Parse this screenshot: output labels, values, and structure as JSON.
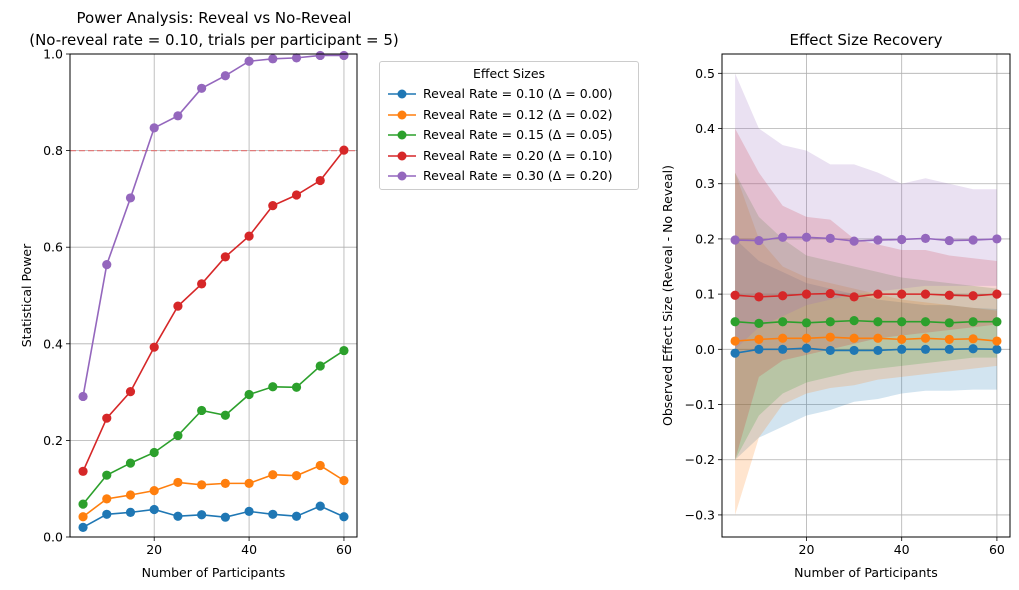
{
  "chart_data": [
    {
      "type": "line",
      "title_line1": "Power Analysis: Reveal vs No-Reveal",
      "title_line2": "(No-reveal rate = 0.10, trials per participant = 5)",
      "xlabel": "Number of Participants",
      "ylabel": "Statistical Power",
      "xlim": [
        2.25,
        62.75
      ],
      "ylim": [
        0,
        1
      ],
      "xticks": [
        20,
        40,
        60
      ],
      "yticks": [
        0.0,
        0.2,
        0.4,
        0.6,
        0.8,
        1.0
      ],
      "ytick_labels": [
        "0.0",
        "0.2",
        "0.4",
        "0.6",
        "0.8",
        "1.0"
      ],
      "grid": true,
      "reference_line": {
        "y": 0.8,
        "color": "#e07b7b",
        "style": "dashed"
      },
      "x": [
        5,
        10,
        15,
        20,
        25,
        30,
        35,
        40,
        45,
        50,
        55,
        60
      ],
      "series": [
        {
          "color": "#1f77b4",
          "values": [
            0.02,
            0.047,
            0.051,
            0.057,
            0.043,
            0.046,
            0.041,
            0.053,
            0.047,
            0.043,
            0.064,
            0.042
          ]
        },
        {
          "color": "#ff7f0e",
          "values": [
            0.042,
            0.079,
            0.087,
            0.096,
            0.113,
            0.108,
            0.111,
            0.111,
            0.129,
            0.127,
            0.148,
            0.117
          ]
        },
        {
          "color": "#2ca02c",
          "values": [
            0.068,
            0.128,
            0.153,
            0.175,
            0.21,
            0.262,
            0.252,
            0.295,
            0.311,
            0.31,
            0.354,
            0.386
          ]
        },
        {
          "color": "#d62728",
          "values": [
            0.136,
            0.246,
            0.301,
            0.393,
            0.478,
            0.524,
            0.58,
            0.623,
            0.686,
            0.708,
            0.738,
            0.801
          ]
        },
        {
          "color": "#9467bd",
          "values": [
            0.291,
            0.564,
            0.702,
            0.847,
            0.872,
            0.929,
            0.955,
            0.985,
            0.99,
            0.992,
            0.997,
            0.997
          ]
        }
      ]
    },
    {
      "type": "line",
      "title": "Effect Size Recovery",
      "xlabel": "Number of Participants",
      "ylabel": "Observed Effect Size (Reveal - No Reveal)",
      "xlim": [
        2.25,
        62.75
      ],
      "ylim": [
        -0.34,
        0.535
      ],
      "xticks": [
        20,
        40,
        60
      ],
      "yticks": [
        -0.3,
        -0.2,
        -0.1,
        0.0,
        0.1,
        0.2,
        0.3,
        0.4,
        0.5
      ],
      "ytick_labels": [
        "−0.3",
        "−0.2",
        "−0.1",
        "0.0",
        "0.1",
        "0.2",
        "0.3",
        "0.4",
        "0.5"
      ],
      "grid": true,
      "x": [
        5,
        10,
        15,
        20,
        25,
        30,
        35,
        40,
        45,
        50,
        55,
        60
      ],
      "series": [
        {
          "color": "#1f77b4",
          "values": [
            -0.007,
            0.0,
            0.0,
            0.002,
            -0.002,
            -0.002,
            -0.002,
            0.0,
            0.0,
            0.0,
            0.001,
            0.0
          ],
          "lower": [
            -0.2,
            -0.16,
            -0.14,
            -0.12,
            -0.11,
            -0.095,
            -0.09,
            -0.08,
            -0.075,
            -0.075,
            -0.073,
            -0.073
          ],
          "upper": [
            0.2,
            0.16,
            0.14,
            0.12,
            0.11,
            0.1,
            0.09,
            0.085,
            0.08,
            0.08,
            0.075,
            0.073
          ]
        },
        {
          "color": "#ff7f0e",
          "values": [
            0.015,
            0.018,
            0.02,
            0.02,
            0.022,
            0.02,
            0.02,
            0.018,
            0.02,
            0.018,
            0.019,
            0.015
          ],
          "lower": [
            -0.3,
            -0.16,
            -0.1,
            -0.08,
            -0.07,
            -0.065,
            -0.055,
            -0.05,
            -0.045,
            -0.04,
            -0.035,
            -0.03
          ],
          "upper": [
            0.32,
            0.2,
            0.15,
            0.13,
            0.12,
            0.11,
            0.1,
            0.09,
            0.085,
            0.08,
            0.075,
            0.07
          ]
        },
        {
          "color": "#2ca02c",
          "values": [
            0.05,
            0.047,
            0.05,
            0.048,
            0.05,
            0.052,
            0.05,
            0.05,
            0.05,
            0.048,
            0.05,
            0.05
          ],
          "lower": [
            -0.2,
            -0.12,
            -0.08,
            -0.06,
            -0.05,
            -0.04,
            -0.035,
            -0.03,
            -0.025,
            -0.02,
            -0.015,
            -0.015
          ],
          "upper": [
            0.32,
            0.24,
            0.2,
            0.17,
            0.16,
            0.15,
            0.14,
            0.13,
            0.125,
            0.12,
            0.115,
            0.11
          ]
        },
        {
          "color": "#d62728",
          "values": [
            0.098,
            0.095,
            0.097,
            0.1,
            0.101,
            0.095,
            0.1,
            0.1,
            0.1,
            0.098,
            0.097,
            0.1
          ],
          "lower": [
            -0.2,
            -0.05,
            -0.02,
            -0.01,
            0.0,
            0.01,
            0.02,
            0.025,
            0.03,
            0.035,
            0.04,
            0.045
          ],
          "upper": [
            0.4,
            0.32,
            0.26,
            0.24,
            0.235,
            0.2,
            0.19,
            0.18,
            0.18,
            0.17,
            0.165,
            0.16
          ]
        },
        {
          "color": "#9467bd",
          "values": [
            0.198,
            0.197,
            0.203,
            0.203,
            0.201,
            0.196,
            0.198,
            0.199,
            0.201,
            0.197,
            0.198,
            0.2
          ],
          "lower": [
            0.0,
            0.04,
            0.06,
            0.08,
            0.09,
            0.1,
            0.105,
            0.11,
            0.115,
            0.115,
            0.115,
            0.115
          ],
          "upper": [
            0.5,
            0.4,
            0.37,
            0.36,
            0.335,
            0.335,
            0.32,
            0.3,
            0.31,
            0.3,
            0.29,
            0.29
          ]
        }
      ]
    }
  ],
  "legend": {
    "title": "Effect Sizes",
    "placement": "outside-right",
    "entries": [
      {
        "label": "Reveal Rate = 0.10 (Δ = 0.00)",
        "color": "#1f77b4"
      },
      {
        "label": "Reveal Rate = 0.12 (Δ = 0.02)",
        "color": "#ff7f0e"
      },
      {
        "label": "Reveal Rate = 0.15 (Δ = 0.05)",
        "color": "#2ca02c"
      },
      {
        "label": "Reveal Rate = 0.20 (Δ = 0.10)",
        "color": "#d62728"
      },
      {
        "label": "Reveal Rate = 0.30 (Δ = 0.20)",
        "color": "#9467bd"
      }
    ]
  }
}
